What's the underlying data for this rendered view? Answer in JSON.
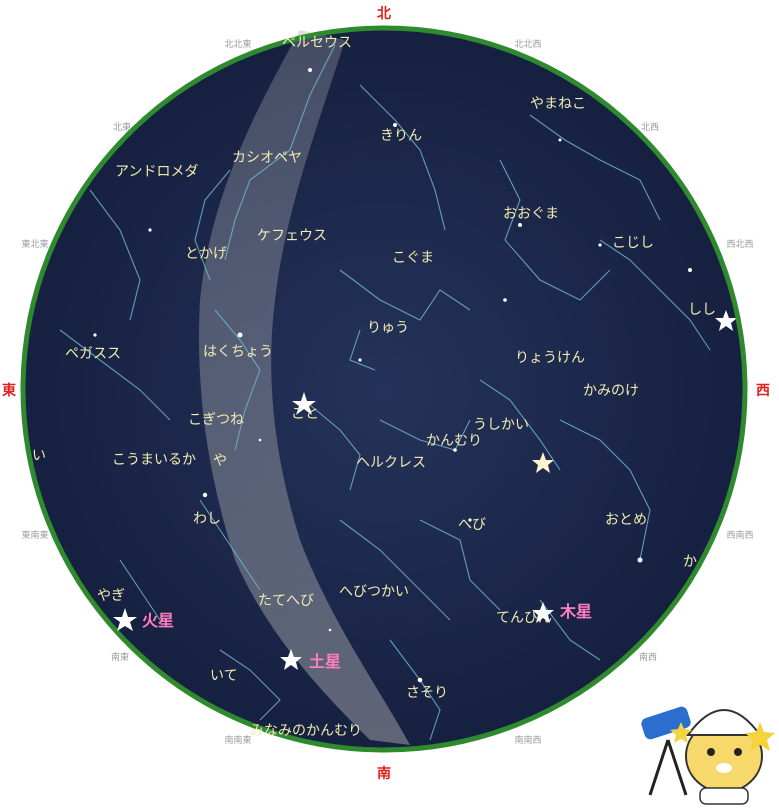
{
  "directions": {
    "north": "北",
    "south": "南",
    "east": "東",
    "west": "西"
  },
  "sub_directions": [
    "北北東",
    "北北西",
    "北東",
    "北西",
    "東北東",
    "西北西",
    "東南東",
    "西南西",
    "南南東",
    "南南西",
    "南東",
    "南西"
  ],
  "constellations": [
    "ペルセウス",
    "きりん",
    "やまねこ",
    "カシオペヤ",
    "アンドロメダ",
    "ケフェウス",
    "とかげ",
    "おおぐま",
    "こぐま",
    "こじし",
    "しし",
    "りゅう",
    "りょうけん",
    "かみのけ",
    "ペガスス",
    "はくちょう",
    "こと",
    "うしかい",
    "こぎつね",
    "かんむり",
    "こうまいるか",
    "や",
    "ヘルクレス",
    "わし",
    "へび",
    "おとめ",
    "やぎ",
    "たてへび",
    "へびつかい",
    "てんびん",
    "いて",
    "さそり",
    "みなみのかんむり",
    "か",
    "い"
  ],
  "planets": [
    "火星",
    "土星",
    "木星"
  ],
  "colors": {
    "sky": "#1e2a4a",
    "horizon": "#2f8a2f",
    "direction": "#e0201c",
    "planet": "#ff7fc2",
    "label": "#f1ecb0"
  }
}
